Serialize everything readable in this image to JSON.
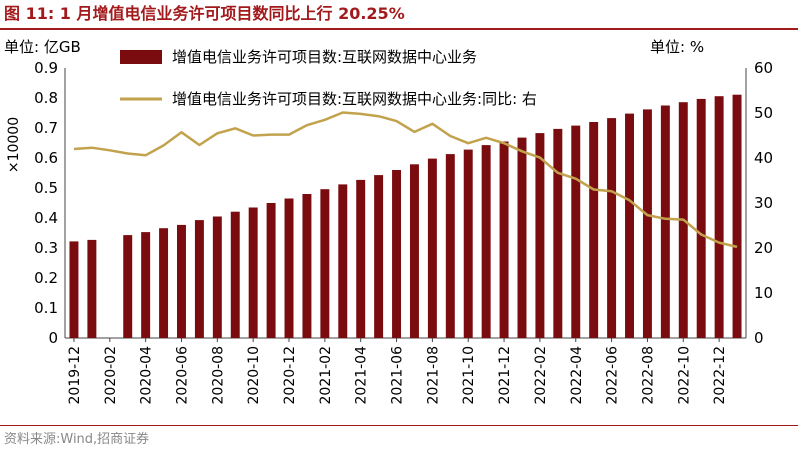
{
  "figure_title": "图 11:  1 月增值电信业务许可项目数同比上行 20.25%",
  "source": "资料来源:Wind,招商证券",
  "chart_data": {
    "type": "bar+line",
    "left_unit_label": "单位: 亿GB",
    "left_multiplier": "×10000",
    "right_unit_label": "单位:  %",
    "colors": {
      "bar": "#7a0c10",
      "line": "#c2a24d",
      "title": "#a31a1d"
    },
    "legend": [
      {
        "name": "增值电信业务许可项目数:互联网数据中心业务",
        "kind": "bar"
      },
      {
        "name": "增值电信业务许可项目数:互联网数据中心业务:同比:  右",
        "kind": "line"
      }
    ],
    "legend_position": "top",
    "y_left": {
      "min": 0,
      "max": 0.9,
      "ticks": [
        "0",
        "0.1",
        "0.2",
        "0.3",
        "0.4",
        "0.5",
        "0.6",
        "0.7",
        "0.8",
        "0.9"
      ]
    },
    "y_right": {
      "min": 0,
      "max": 60,
      "ticks": [
        "0",
        "10",
        "20",
        "30",
        "40",
        "50",
        "60"
      ]
    },
    "x_tick_labels": [
      "2019-12",
      "2020-02",
      "2020-04",
      "2020-06",
      "2020-08",
      "2020-10",
      "2020-12",
      "2021-02",
      "2021-04",
      "2021-06",
      "2021-08",
      "2021-10",
      "2021-12",
      "2022-02",
      "2022-04",
      "2022-06",
      "2022-08",
      "2022-10",
      "2022-12"
    ],
    "categories": [
      "2019-12",
      "2020-01",
      "2020-02",
      "2020-03",
      "2020-04",
      "2020-05",
      "2020-06",
      "2020-07",
      "2020-08",
      "2020-09",
      "2020-10",
      "2020-11",
      "2020-12",
      "2021-01",
      "2021-02",
      "2021-03",
      "2021-04",
      "2021-05",
      "2021-06",
      "2021-07",
      "2021-08",
      "2021-09",
      "2021-10",
      "2021-11",
      "2021-12",
      "2022-01",
      "2022-02",
      "2022-03",
      "2022-04",
      "2022-05",
      "2022-06",
      "2022-07",
      "2022-08",
      "2022-09",
      "2022-10",
      "2022-11",
      "2022-12",
      "2023-01"
    ],
    "bar_values": [
      0.322,
      0.327,
      null,
      0.343,
      0.353,
      0.366,
      0.377,
      0.393,
      0.405,
      0.421,
      0.435,
      0.45,
      0.465,
      0.48,
      0.496,
      0.512,
      0.527,
      0.543,
      0.56,
      0.579,
      0.598,
      0.613,
      0.628,
      0.643,
      0.655,
      0.668,
      0.683,
      0.697,
      0.708,
      0.72,
      0.733,
      0.748,
      0.762,
      0.775,
      0.786,
      0.797,
      0.806,
      0.811
    ],
    "line_values": [
      42.0,
      42.3,
      41.7,
      41.0,
      40.6,
      42.8,
      45.7,
      42.9,
      45.5,
      46.6,
      45.0,
      45.2,
      45.2,
      47.3,
      48.5,
      50.1,
      49.8,
      49.3,
      48.2,
      45.8,
      47.6,
      44.9,
      43.3,
      44.5,
      43.3,
      41.5,
      40.1,
      36.7,
      35.4,
      33.0,
      32.6,
      30.6,
      27.3,
      26.5,
      26.3,
      23.0,
      21.2,
      20.25
    ]
  }
}
